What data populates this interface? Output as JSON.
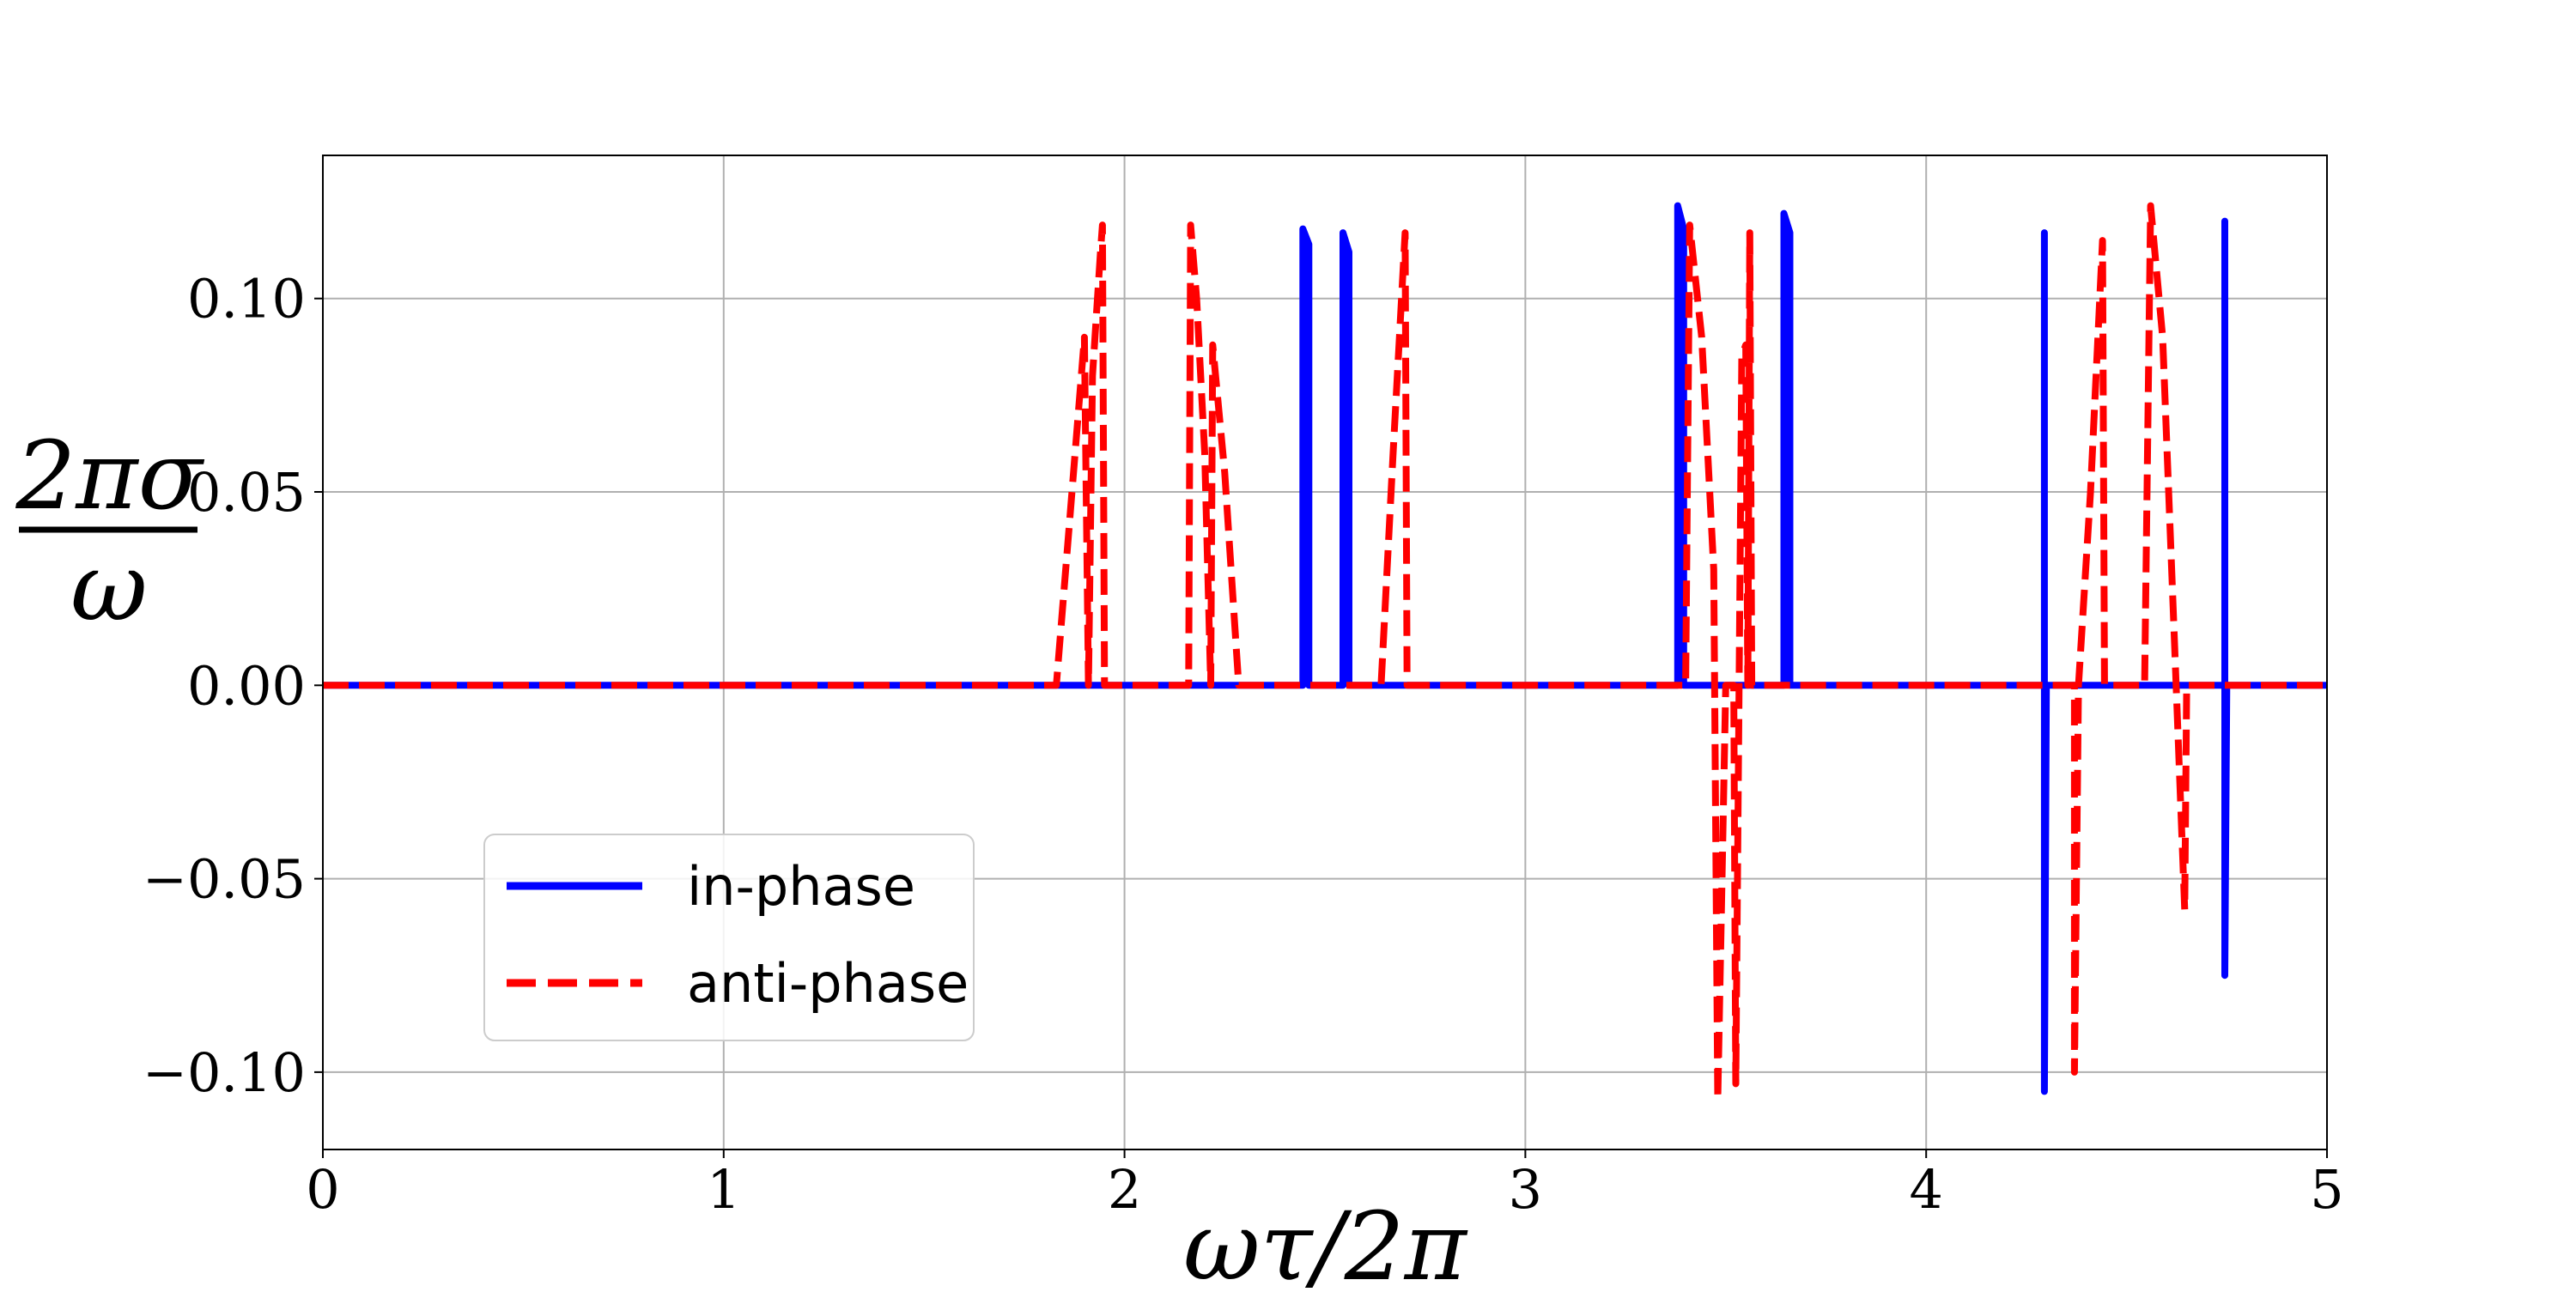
{
  "chart_data": {
    "type": "line",
    "xlabel": "ωτ/2π",
    "ylabel_numerator": "2πσ",
    "ylabel_denominator": "ω",
    "xlim": [
      0,
      5
    ],
    "ylim": [
      -0.12,
      0.137
    ],
    "xticks": [
      0,
      1,
      2,
      3,
      4,
      5
    ],
    "xtick_labels": [
      "0",
      "1",
      "2",
      "3",
      "4",
      "5"
    ],
    "yticks": [
      0.1,
      0.05,
      0.0,
      -0.05,
      -0.1
    ],
    "ytick_labels": [
      "0.10",
      "0.05",
      "0.00",
      "−0.05",
      "−0.10"
    ],
    "grid": true,
    "legend_position": "lower-left",
    "series": [
      {
        "name": "in-phase",
        "color": "#0000ff",
        "style": "solid",
        "points": [
          [
            0,
            0
          ],
          [
            2.445,
            0
          ],
          [
            2.445,
            0.118
          ],
          [
            2.46,
            0.114
          ],
          [
            2.46,
            0
          ],
          [
            2.545,
            0
          ],
          [
            2.545,
            0.117
          ],
          [
            2.56,
            0.112
          ],
          [
            2.56,
            0
          ],
          [
            3.38,
            0
          ],
          [
            3.38,
            0.124
          ],
          [
            3.395,
            0.118
          ],
          [
            3.395,
            0
          ],
          [
            3.645,
            0
          ],
          [
            3.645,
            0.122
          ],
          [
            3.66,
            0.117
          ],
          [
            3.66,
            0
          ],
          [
            4.295,
            0
          ],
          [
            4.295,
            0.117
          ],
          [
            4.295,
            -0.105
          ],
          [
            4.3,
            0
          ],
          [
            4.745,
            0
          ],
          [
            4.745,
            0.12
          ],
          [
            4.745,
            -0.075
          ],
          [
            4.75,
            0
          ],
          [
            5,
            0
          ]
        ]
      },
      {
        "name": "anti-phase",
        "color": "#ff0000",
        "style": "dashed",
        "points": [
          [
            0,
            0
          ],
          [
            1.83,
            0
          ],
          [
            1.865,
            0.045
          ],
          [
            1.9,
            0.09
          ],
          [
            1.91,
            0
          ],
          [
            1.92,
            0.08
          ],
          [
            1.94,
            0.112
          ],
          [
            1.945,
            0.119
          ],
          [
            1.95,
            0
          ],
          [
            2.16,
            0
          ],
          [
            2.165,
            0.119
          ],
          [
            2.18,
            0.1
          ],
          [
            2.2,
            0.06
          ],
          [
            2.215,
            0
          ],
          [
            2.22,
            0.088
          ],
          [
            2.25,
            0.055
          ],
          [
            2.285,
            0
          ],
          [
            2.64,
            0
          ],
          [
            2.67,
            0.06
          ],
          [
            2.7,
            0.117
          ],
          [
            2.705,
            0
          ],
          [
            3.4,
            0
          ],
          [
            3.41,
            0.119
          ],
          [
            3.44,
            0.09
          ],
          [
            3.47,
            0.03
          ],
          [
            3.48,
            -0.107
          ],
          [
            3.5,
            0
          ],
          [
            3.52,
            0
          ],
          [
            3.525,
            -0.103
          ],
          [
            3.54,
            0.085
          ],
          [
            3.55,
            0.088
          ],
          [
            3.555,
            0
          ],
          [
            3.56,
            0.117
          ],
          [
            3.565,
            0
          ],
          [
            4.37,
            0
          ],
          [
            4.37,
            -0.1
          ],
          [
            4.38,
            0
          ],
          [
            4.41,
            0.05
          ],
          [
            4.44,
            0.115
          ],
          [
            4.445,
            0
          ],
          [
            4.545,
            0
          ],
          [
            4.56,
            0.124
          ],
          [
            4.59,
            0.09
          ],
          [
            4.62,
            0.01
          ],
          [
            4.645,
            -0.058
          ],
          [
            4.65,
            0
          ],
          [
            5,
            0
          ]
        ]
      }
    ]
  }
}
